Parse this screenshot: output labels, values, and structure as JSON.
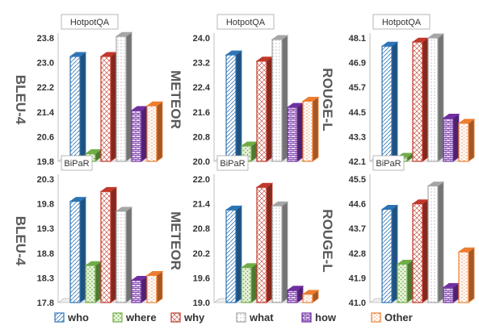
{
  "chart_data": [
    {
      "type": "bar",
      "dataset": "HotpotQA",
      "ylabel": "BLEU-4",
      "ylim": [
        19.8,
        23.8
      ],
      "yticks": [
        "19.8",
        "20.6",
        "21.4",
        "22.2",
        "23.0",
        "23.8"
      ],
      "categories": [
        "who",
        "where",
        "why",
        "what",
        "how",
        "Other"
      ],
      "values": [
        23.2,
        20.05,
        23.2,
        23.85,
        21.45,
        21.6
      ]
    },
    {
      "type": "bar",
      "dataset": "HotpotQA",
      "ylabel": "METEOR",
      "ylim": [
        20.0,
        24.0
      ],
      "yticks": [
        "20.0",
        "20.8",
        "21.6",
        "22.4",
        "23.2",
        "24.0"
      ],
      "categories": [
        "who",
        "where",
        "why",
        "what",
        "how",
        "Other"
      ],
      "values": [
        23.45,
        20.5,
        23.25,
        23.95,
        21.75,
        21.95
      ]
    },
    {
      "type": "bar",
      "dataset": "HotpotQA",
      "ylabel": "ROUGE-L",
      "ylim": [
        42.1,
        48.1
      ],
      "yticks": [
        "42.1",
        "43.3",
        "44.5",
        "45.7",
        "46.9",
        "48.1"
      ],
      "categories": [
        "who",
        "where",
        "why",
        "what",
        "how",
        "Other"
      ],
      "values": [
        47.7,
        42.3,
        47.9,
        48.1,
        44.2,
        43.95
      ]
    },
    {
      "type": "bar",
      "dataset": "BiPaR",
      "ylabel": "BLEU-4",
      "ylim": [
        17.8,
        20.3
      ],
      "yticks": [
        "17.8",
        "18.3",
        "18.8",
        "19.3",
        "19.8",
        "20.3"
      ],
      "categories": [
        "who",
        "where",
        "why",
        "what",
        "how",
        "Other"
      ],
      "values": [
        19.85,
        18.55,
        20.05,
        19.65,
        18.25,
        18.35
      ]
    },
    {
      "type": "bar",
      "dataset": "BiPaR",
      "ylabel": "METEOR",
      "ylim": [
        19.0,
        22.0
      ],
      "yticks": [
        "19.0",
        "19.6",
        "20.2",
        "20.8",
        "21.4",
        "22.0"
      ],
      "categories": [
        "who",
        "where",
        "why",
        "what",
        "how",
        "Other"
      ],
      "values": [
        21.25,
        19.85,
        21.8,
        21.35,
        19.3,
        19.2
      ]
    },
    {
      "type": "bar",
      "dataset": "BiPaR",
      "ylabel": "ROUGE-L",
      "ylim": [
        41.0,
        45.5
      ],
      "yticks": [
        "41.0",
        "41.9",
        "42.8",
        "43.7",
        "44.6",
        "45.5"
      ],
      "categories": [
        "who",
        "where",
        "why",
        "what",
        "how",
        "Other"
      ],
      "values": [
        44.4,
        42.4,
        44.6,
        45.25,
        41.55,
        42.85
      ]
    }
  ],
  "legend": [
    {
      "label": "who",
      "color": "#2e75b6",
      "pattern": "who"
    },
    {
      "label": "where",
      "color": "#70ad47",
      "pattern": "where"
    },
    {
      "label": "why",
      "color": "#c0392b",
      "pattern": "why"
    },
    {
      "label": "what",
      "color": "#a6a6a6",
      "pattern": "what"
    },
    {
      "label": "how",
      "color": "#7030a0",
      "pattern": "how"
    },
    {
      "label": "Other",
      "color": "#ed7d31",
      "pattern": "other"
    }
  ]
}
